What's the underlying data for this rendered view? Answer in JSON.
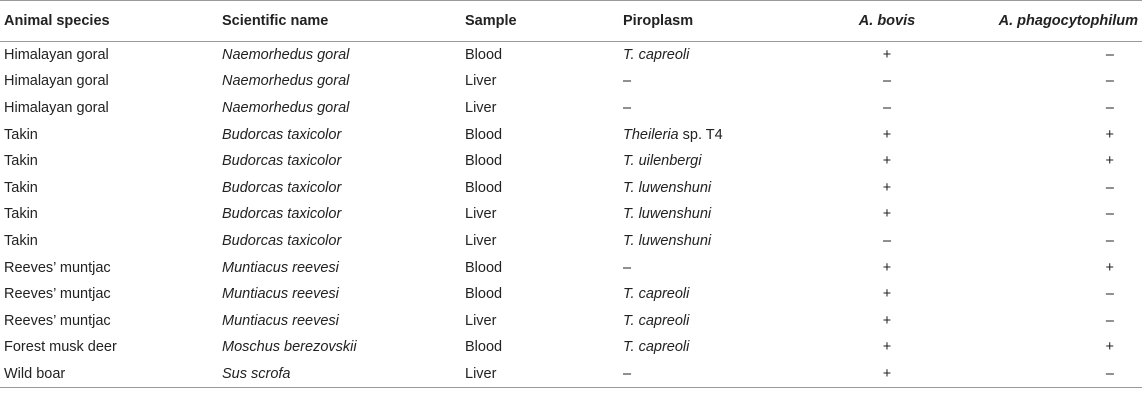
{
  "headers": {
    "species": "Animal species",
    "scientific": "Scientific name",
    "sample": "Sample",
    "piroplasm": "Piroplasm",
    "bovis": "A. bovis",
    "phago": "A. phagocytophilum"
  },
  "rows": [
    {
      "species": "Himalayan goral",
      "scientific": "Naemorhedus goral",
      "sample": "Blood",
      "piro_italic": "T. capreoli",
      "piro_rest": "",
      "bovis": "+",
      "phago": "–"
    },
    {
      "species": "Himalayan goral",
      "scientific": "Naemorhedus goral",
      "sample": "Liver",
      "piro_italic": "",
      "piro_rest": "–",
      "bovis": "–",
      "phago": "–"
    },
    {
      "species": "Himalayan goral",
      "scientific": "Naemorhedus goral",
      "sample": "Liver",
      "piro_italic": "",
      "piro_rest": "–",
      "bovis": "–",
      "phago": "–"
    },
    {
      "species": "Takin",
      "scientific": "Budorcas taxicolor",
      "sample": "Blood",
      "piro_italic": "Theileria",
      "piro_rest": " sp. T4",
      "bovis": "+",
      "phago": "+"
    },
    {
      "species": "Takin",
      "scientific": "Budorcas taxicolor",
      "sample": "Blood",
      "piro_italic": "T. uilenbergi",
      "piro_rest": "",
      "bovis": "+",
      "phago": "+"
    },
    {
      "species": "Takin",
      "scientific": "Budorcas taxicolor",
      "sample": "Blood",
      "piro_italic": "T. luwenshuni",
      "piro_rest": "",
      "bovis": "+",
      "phago": "–"
    },
    {
      "species": "Takin",
      "scientific": "Budorcas taxicolor",
      "sample": "Liver",
      "piro_italic": "T. luwenshuni",
      "piro_rest": "",
      "bovis": "+",
      "phago": "–"
    },
    {
      "species": "Takin",
      "scientific": "Budorcas taxicolor",
      "sample": "Liver",
      "piro_italic": "T. luwenshuni",
      "piro_rest": "",
      "bovis": "–",
      "phago": "–"
    },
    {
      "species": "Reeves’ muntjac",
      "scientific": "Muntiacus reevesi",
      "sample": "Blood",
      "piro_italic": "",
      "piro_rest": "–",
      "bovis": "+",
      "phago": "+"
    },
    {
      "species": "Reeves’ muntjac",
      "scientific": "Muntiacus reevesi",
      "sample": "Blood",
      "piro_italic": "T. capreoli",
      "piro_rest": "",
      "bovis": "+",
      "phago": "–"
    },
    {
      "species": "Reeves’ muntjac",
      "scientific": "Muntiacus reevesi",
      "sample": "Liver",
      "piro_italic": "T. capreoli",
      "piro_rest": "",
      "bovis": "+",
      "phago": "–"
    },
    {
      "species": "Forest musk deer",
      "scientific": "Moschus berezovskii",
      "sample": "Blood",
      "piro_italic": "T. capreoli",
      "piro_rest": "",
      "bovis": "+",
      "phago": "+"
    },
    {
      "species": "Wild boar",
      "scientific": "Sus scrofa",
      "sample": "Liver",
      "piro_italic": "",
      "piro_rest": "–",
      "bovis": "+",
      "phago": "–"
    }
  ]
}
